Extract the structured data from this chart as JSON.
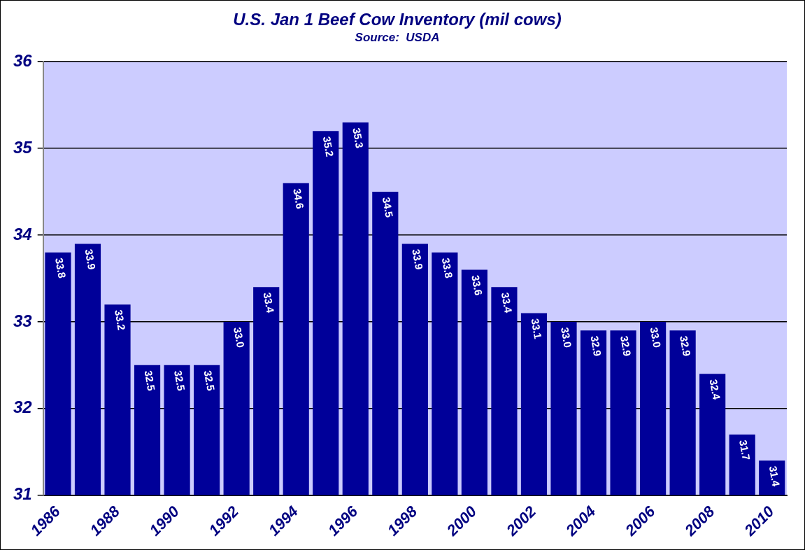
{
  "chart_data": {
    "type": "bar",
    "title": "U.S. Jan 1 Beef Cow Inventory (mil cows)",
    "subtitle": "Source:  USDA",
    "categories": [
      "1986",
      null,
      "1988",
      null,
      "1990",
      null,
      "1992",
      null,
      "1994",
      null,
      "1996",
      null,
      "1998",
      null,
      "2000",
      null,
      "2002",
      null,
      "2004",
      null,
      "2006",
      null,
      "2008",
      null,
      "2010"
    ],
    "values": [
      33.8,
      33.9,
      33.2,
      32.5,
      32.5,
      32.5,
      33.0,
      33.4,
      34.6,
      35.2,
      35.3,
      34.5,
      33.9,
      33.8,
      33.6,
      33.4,
      33.1,
      33.0,
      32.9,
      32.9,
      33.0,
      32.9,
      32.4,
      31.7,
      31.4
    ],
    "color": "#000099",
    "value_labels": [
      "33.8",
      "33.9",
      "33.2",
      "32.5",
      "32.5",
      "32.5",
      "33.0",
      "33.4",
      "34.6",
      "35.2",
      "35.3",
      "34.5",
      "33.9",
      "33.8",
      "33.6",
      "33.4",
      "33.1",
      "33.0",
      "32.9",
      "32.9",
      "33.0",
      "32.9",
      "32.4",
      "31.7",
      "31.4"
    ],
    "ylim": [
      31,
      36
    ],
    "yticks": [
      31,
      32,
      33,
      34,
      35,
      36
    ],
    "grid": "y",
    "legend": false
  }
}
